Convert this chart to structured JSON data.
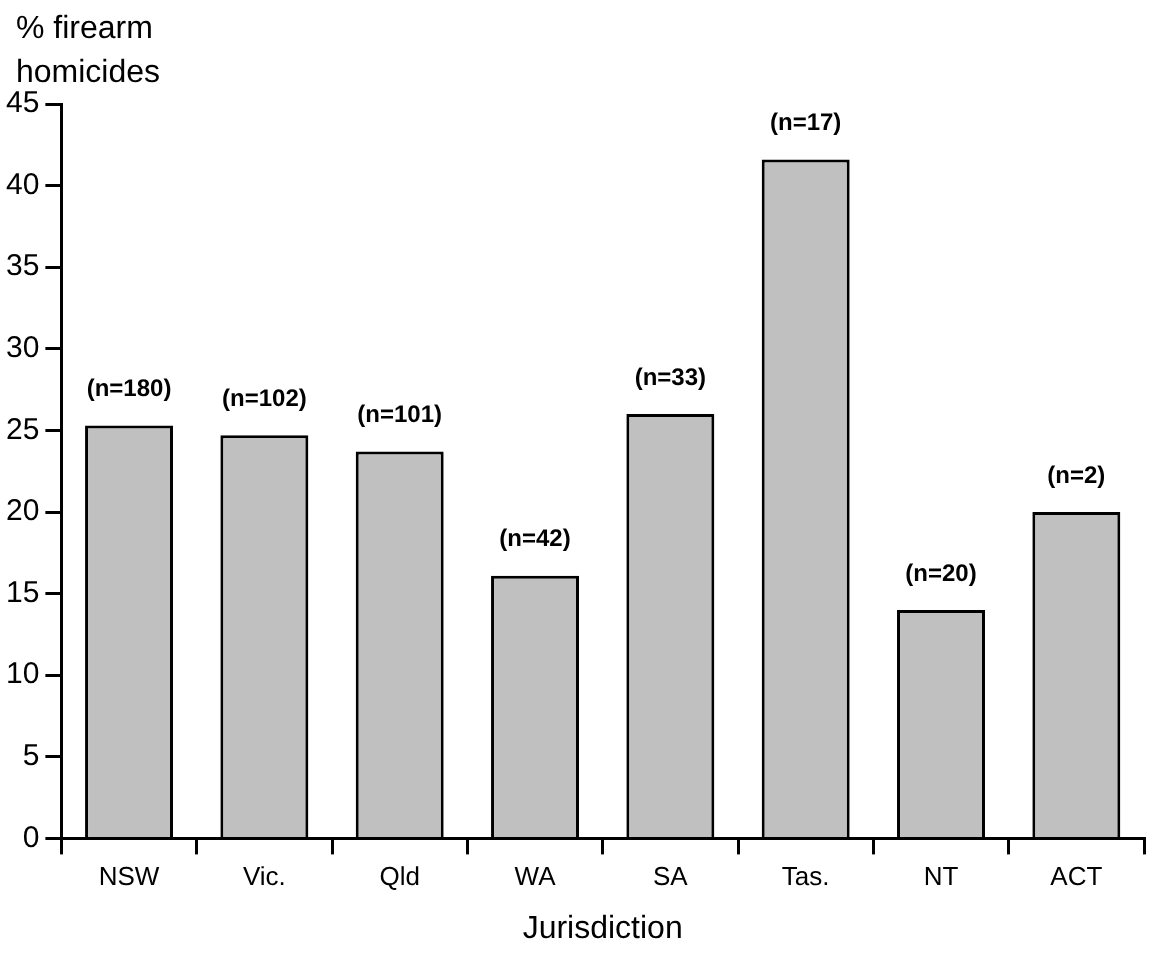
{
  "chart_data": {
    "type": "bar",
    "ylabel": "% firearm homicides",
    "xlabel": "Jurisdiction",
    "categories": [
      "NSW",
      "Vic.",
      "Qld",
      "WA",
      "SA",
      "Tas.",
      "NT",
      "ACT"
    ],
    "values": [
      25.3,
      24.7,
      23.7,
      16.1,
      26.0,
      41.6,
      14.0,
      20.0
    ],
    "annotations": [
      {
        "text": "(n=180)",
        "x": "NSW",
        "y": 25.3
      },
      {
        "text": "(n=102)",
        "x": "Vic.",
        "y": 24.7
      },
      {
        "text": "(n=101)",
        "x": "Qld",
        "y": 23.7
      },
      {
        "text": "(n=42)",
        "x": "WA",
        "y": 16.1
      },
      {
        "text": "(n=33)",
        "x": "SA",
        "y": 26.0
      },
      {
        "text": "(n=17)",
        "x": "Tas.",
        "y": 41.6
      },
      {
        "text": "(n=20)",
        "x": "NT",
        "y": 14.0
      },
      {
        "text": "(n=2)",
        "x": "ACT",
        "y": 20.0
      }
    ],
    "color": "#c0c0c0",
    "ylim": [
      0,
      45
    ],
    "yticks": [
      0,
      5,
      10,
      15,
      20,
      25,
      30,
      35,
      40,
      45
    ],
    "grid": false,
    "legend": false
  }
}
